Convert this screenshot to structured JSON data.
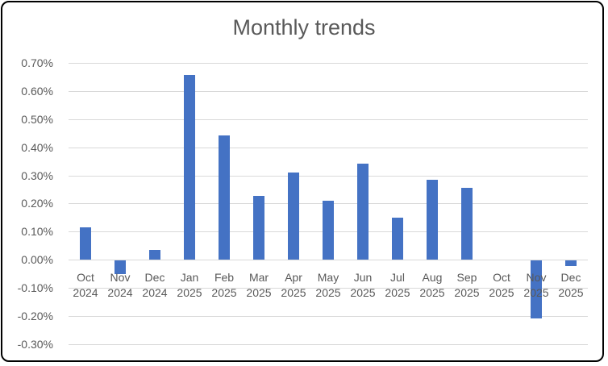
{
  "chart_data": {
    "type": "bar",
    "title": "Monthly trends",
    "categories": [
      {
        "month": "Oct",
        "year": "2024"
      },
      {
        "month": "Nov",
        "year": "2024"
      },
      {
        "month": "Dec",
        "year": "2024"
      },
      {
        "month": "Jan",
        "year": "2025"
      },
      {
        "month": "Feb",
        "year": "2025"
      },
      {
        "month": "Mar",
        "year": "2025"
      },
      {
        "month": "Apr",
        "year": "2025"
      },
      {
        "month": "May",
        "year": "2025"
      },
      {
        "month": "Jun",
        "year": "2025"
      },
      {
        "month": "Jul",
        "year": "2025"
      },
      {
        "month": "Aug",
        "year": "2025"
      },
      {
        "month": "Sep",
        "year": "2025"
      },
      {
        "month": "Oct",
        "year": "2025"
      },
      {
        "month": "Nov",
        "year": "2025"
      },
      {
        "month": "Dec",
        "year": "2025"
      }
    ],
    "values_pct": [
      0.115,
      -0.05,
      0.035,
      0.655,
      0.44,
      0.225,
      0.31,
      0.21,
      0.34,
      0.15,
      0.285,
      0.255,
      0.0,
      -0.205,
      -0.02
    ],
    "y_ticks": [
      {
        "label": "0.70%",
        "value": 0.7
      },
      {
        "label": "0.60%",
        "value": 0.6
      },
      {
        "label": "0.50%",
        "value": 0.5
      },
      {
        "label": "0.40%",
        "value": 0.4
      },
      {
        "label": "0.30%",
        "value": 0.3
      },
      {
        "label": "0.20%",
        "value": 0.2
      },
      {
        "label": "0.10%",
        "value": 0.1
      },
      {
        "label": "0.00%",
        "value": 0.0
      },
      {
        "label": "-0.10%",
        "value": -0.1
      },
      {
        "label": "-0.20%",
        "value": -0.2
      },
      {
        "label": "-0.30%",
        "value": -0.3
      }
    ],
    "ylim": [
      -0.3,
      0.7
    ],
    "xlabel": "",
    "ylabel": "",
    "grid": true,
    "legend": false,
    "colors": {
      "bar": "#4472C4",
      "gridline": "#D9D9D9",
      "text": "#595959",
      "title": "#595959",
      "border": "#000000"
    }
  }
}
